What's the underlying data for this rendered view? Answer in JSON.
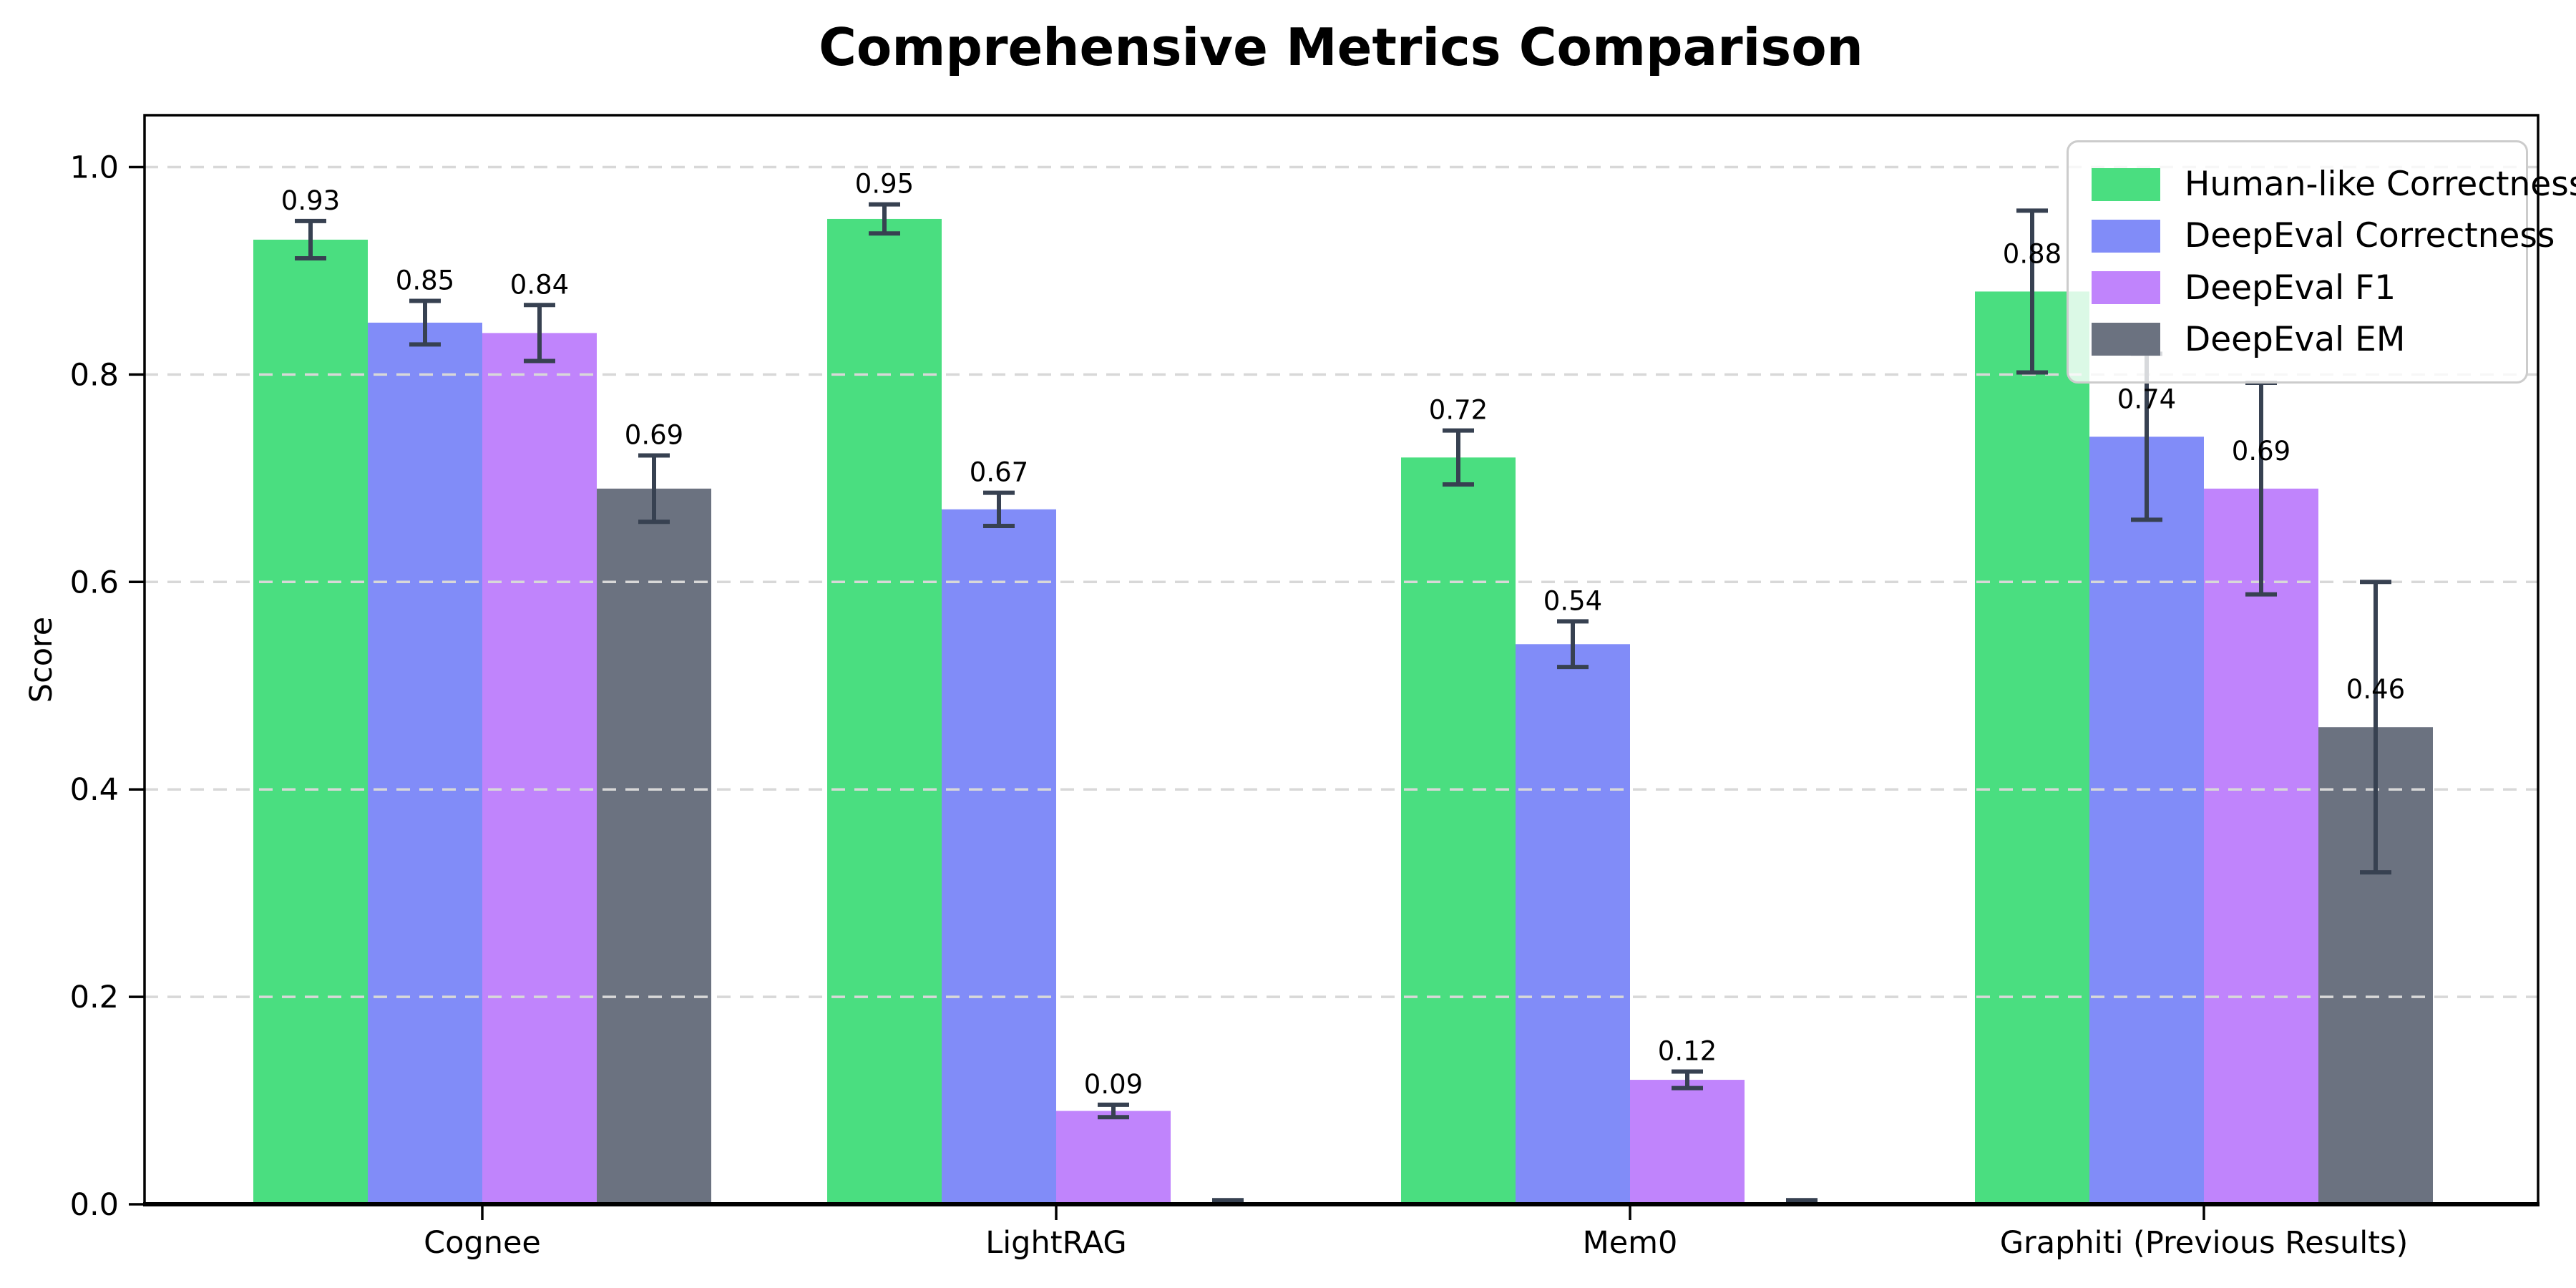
{
  "chart_data": {
    "type": "bar",
    "title": "Comprehensive Metrics Comparison",
    "ylabel": "Score",
    "xlabel": "",
    "categories": [
      "Cognee",
      "LightRAG",
      "Mem0",
      "Graphiti (Previous Results)"
    ],
    "series": [
      {
        "name": "Human-like Correctness",
        "color": "#4ade80",
        "values": [
          0.93,
          0.95,
          0.72,
          0.88
        ],
        "errors": [
          0.018,
          0.014,
          0.026,
          0.078
        ],
        "labels": [
          "0.93",
          "0.95",
          "0.72",
          "0.88"
        ]
      },
      {
        "name": "DeepEval Correctness",
        "color": "#818cf8",
        "values": [
          0.85,
          0.67,
          0.54,
          0.74
        ],
        "errors": [
          0.021,
          0.016,
          0.022,
          0.08
        ],
        "labels": [
          "0.85",
          "0.67",
          "0.54",
          "0.74"
        ]
      },
      {
        "name": "DeepEval F1",
        "color": "#c084fc",
        "values": [
          0.84,
          0.09,
          0.12,
          0.69
        ],
        "errors": [
          0.027,
          0.006,
          0.008,
          0.102
        ],
        "labels": [
          "0.84",
          "0.09",
          "0.12",
          "0.69"
        ]
      },
      {
        "name": "DeepEval EM",
        "color": "#6b7280",
        "values": [
          0.69,
          0.0,
          0.0,
          0.46
        ],
        "errors": [
          0.032,
          0.004,
          0.004,
          0.14
        ],
        "labels": [
          "0.69",
          "",
          "",
          "0.46"
        ]
      }
    ],
    "yticks": [
      "0.0",
      "0.2",
      "0.4",
      "0.6",
      "0.8",
      "1.0"
    ],
    "ylim": [
      0,
      1.05
    ],
    "grid": "dashed-horizontal",
    "legend_position": "upper right"
  },
  "styles": {
    "error_bar_color": "#374151",
    "grid_color": "#d8d8d8",
    "axis_color": "#000000",
    "legend_border_color": "#cccccc",
    "background": "#ffffff"
  }
}
